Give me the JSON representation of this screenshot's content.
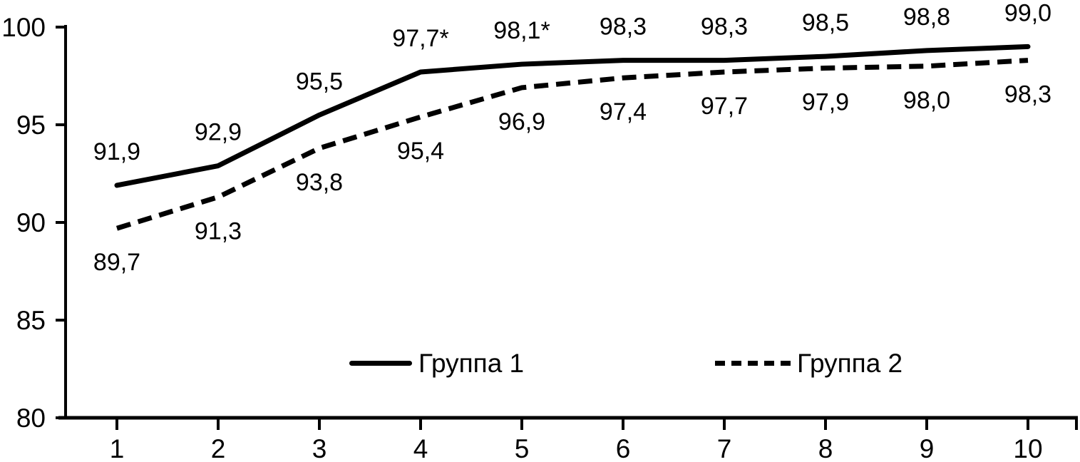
{
  "chart_data": {
    "type": "line",
    "title": "",
    "xlabel": "",
    "ylabel": "",
    "background_color": "#ffffff",
    "line_color": "#000000",
    "text_color": "#000000",
    "grid": false,
    "ylim": [
      80,
      100
    ],
    "yticks": [
      "80",
      "85",
      "90",
      "95",
      "100"
    ],
    "xticks": [
      "1",
      "2",
      "3",
      "4",
      "5",
      "6",
      "7",
      "8",
      "9",
      "10"
    ],
    "x": [
      1,
      2,
      3,
      4,
      5,
      6,
      7,
      8,
      9,
      10
    ],
    "legend_position": "inside-bottom-center",
    "series": [
      {
        "name": "Группа 1",
        "style": "solid",
        "label_side": "above",
        "values": [
          91.9,
          92.9,
          95.5,
          97.7,
          98.1,
          98.3,
          98.3,
          98.5,
          98.8,
          99.0
        ],
        "labels": [
          "91,9",
          "92,9",
          "95,5",
          "97,7*",
          "98,1*",
          "98,3",
          "98,3",
          "98,5",
          "98,8",
          "99,0"
        ]
      },
      {
        "name": "Группа 2",
        "style": "dashed",
        "label_side": "below",
        "values": [
          89.7,
          91.3,
          93.8,
          95.4,
          96.9,
          97.4,
          97.7,
          97.9,
          98.0,
          98.3
        ],
        "labels": [
          "89,7",
          "91,3",
          "93,8",
          "95,4",
          "96,9",
          "97,4",
          "97,7",
          "97,9",
          "98,0",
          "98,3"
        ]
      }
    ]
  }
}
